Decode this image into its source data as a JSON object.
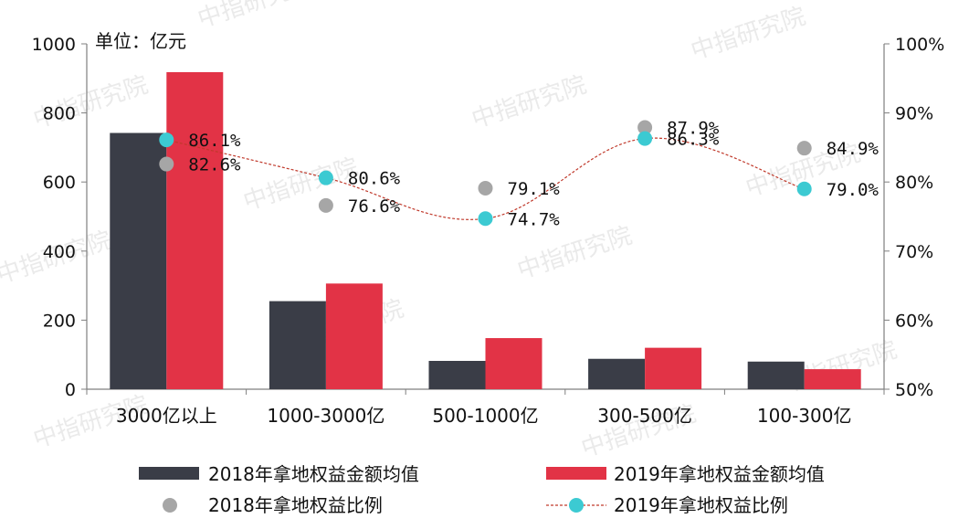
{
  "watermark": "中指研究院",
  "chart_data": {
    "type": "bar",
    "unit_label": "单位：亿元",
    "categories": [
      "3000亿以上",
      "1000-3000亿",
      "500-1000亿",
      "300-500亿",
      "100-300亿"
    ],
    "y_left": {
      "min": 0,
      "max": 1000,
      "ticks": [
        "0",
        "200",
        "400",
        "600",
        "800",
        "1000"
      ]
    },
    "y_right": {
      "min": 50,
      "max": 100,
      "ticks": [
        "50%",
        "60%",
        "70%",
        "80%",
        "90%",
        "100%"
      ]
    },
    "series": [
      {
        "name": "2018年拿地权益金额均值",
        "kind": "bar",
        "axis": "left",
        "color": "#3a3d47",
        "values": [
          742,
          255,
          82,
          88,
          80
        ]
      },
      {
        "name": "2019年拿地权益金额均值",
        "kind": "bar",
        "axis": "left",
        "color": "#e23346",
        "values": [
          918,
          306,
          148,
          120,
          58
        ]
      },
      {
        "name": "2018年拿地权益比例",
        "kind": "scatter",
        "axis": "right",
        "color": "#a6a6a6",
        "values": [
          82.6,
          76.6,
          79.1,
          87.9,
          84.9
        ],
        "labels": [
          "82.6%",
          "76.6%",
          "79.1%",
          "87.9%",
          "84.9%"
        ]
      },
      {
        "name": "2019年拿地权益比例",
        "kind": "line",
        "axis": "right",
        "color": "#3ccad2",
        "line_color": "#c0392b",
        "values": [
          86.1,
          80.6,
          74.7,
          86.3,
          79.0
        ],
        "labels": [
          "86.1%",
          "80.6%",
          "74.7%",
          "86.3%",
          "79.0%"
        ]
      }
    ],
    "legend_position": "bottom",
    "grid": false
  }
}
